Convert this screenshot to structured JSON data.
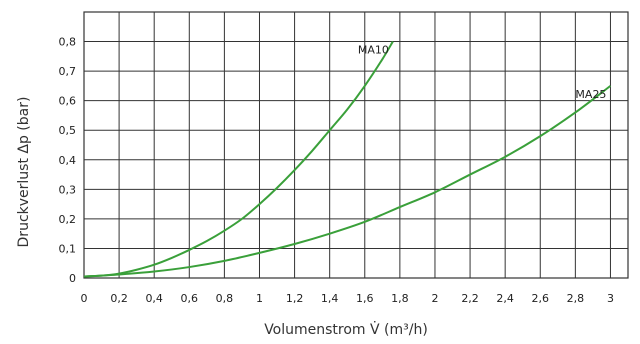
{
  "chart_data": {
    "type": "line",
    "xlabel": "Volumenstrom V̇ (m³/h)",
    "ylabel": "Druckverlust Δp (bar)",
    "xlim": [
      0,
      3.1
    ],
    "ylim": [
      0,
      0.9
    ],
    "x_ticks": [
      "0",
      "0,2",
      "0,4",
      "0,6",
      "0,8",
      "1",
      "1,2",
      "1,4",
      "1,6",
      "1,8",
      "2",
      "2,2",
      "2,4",
      "2,6",
      "2,8",
      "3"
    ],
    "y_ticks": [
      "0",
      "0,1",
      "0,2",
      "0,3",
      "0,4",
      "0,5",
      "0,6",
      "0,7",
      "0,8"
    ],
    "grid": true,
    "series_color": "#3aa03a",
    "series": [
      {
        "name": "MA10",
        "x": [
          0,
          0.1,
          0.2,
          0.3,
          0.4,
          0.5,
          0.6,
          0.7,
          0.8,
          0.9,
          1.0,
          1.1,
          1.2,
          1.3,
          1.4,
          1.5,
          1.6,
          1.7,
          1.76
        ],
        "y": [
          0.005,
          0.008,
          0.015,
          0.028,
          0.045,
          0.068,
          0.095,
          0.125,
          0.16,
          0.2,
          0.25,
          0.305,
          0.365,
          0.43,
          0.5,
          0.57,
          0.65,
          0.74,
          0.8
        ]
      },
      {
        "name": "MA25",
        "x": [
          0,
          0.2,
          0.4,
          0.6,
          0.8,
          1.0,
          1.2,
          1.4,
          1.6,
          1.8,
          2.0,
          2.2,
          2.4,
          2.6,
          2.8,
          3.0
        ],
        "y": [
          0.005,
          0.012,
          0.022,
          0.037,
          0.058,
          0.085,
          0.115,
          0.15,
          0.19,
          0.24,
          0.29,
          0.35,
          0.41,
          0.48,
          0.56,
          0.65
        ]
      }
    ]
  }
}
